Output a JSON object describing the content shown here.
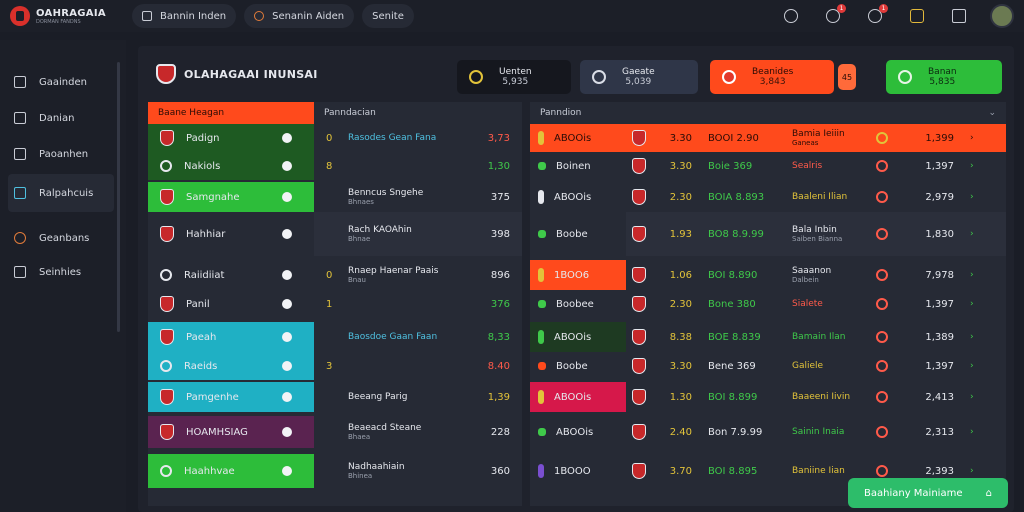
{
  "app": {
    "title": "OAHRAGAIA",
    "subtitle": "DORMAN FANDNS"
  },
  "tabs": [
    {
      "label": "Bannin Inden"
    },
    {
      "label": "Senanin Aiden"
    },
    {
      "label": "Senite"
    }
  ],
  "top_badges": {
    "b1": "1",
    "b2": "1"
  },
  "sidebar": {
    "items": [
      {
        "label": "Gaainden"
      },
      {
        "label": "Danian"
      },
      {
        "label": "Paoanhen"
      },
      {
        "label": "Ralpahcuis"
      },
      {
        "label": "Geanbans"
      },
      {
        "label": "Seinhies"
      }
    ]
  },
  "header": {
    "title": "OLAHAGAAI INUNSAI"
  },
  "stats": [
    {
      "label": "Uenten",
      "value": "5,935"
    },
    {
      "label": "Gaeate",
      "value": "5,039"
    },
    {
      "label": "Beanides",
      "value": "3,843"
    },
    {
      "label": "Banan",
      "value": "5,835"
    }
  ],
  "stat_chip": "45",
  "left_panel": {
    "head_a": "Baane Heagan",
    "head_b": "Panndacian",
    "rows": [
      {
        "team": "Padign",
        "num": "0",
        "name": "Rasodes Gean Fana",
        "score": "3,73"
      },
      {
        "team": "Nakiols",
        "num": "8",
        "name": "",
        "score": "1,30"
      },
      {
        "team": "Samgnahe",
        "num": "",
        "name": "Benncus Sngehe",
        "sub": "Bhnaes",
        "score": "375"
      },
      {
        "team": "Hahhiar",
        "num": "",
        "name": "Rach KAOAhin",
        "sub": "Bhnae",
        "score": "398"
      },
      {
        "team": "Raiidiiat",
        "sub": "Bnau",
        "num": "0",
        "name": "Rnaep Haenar Paais",
        "score": "896"
      },
      {
        "team": "Panil",
        "num": "1",
        "name": "",
        "score": "376"
      },
      {
        "team": "Paeah",
        "num": "",
        "name": "Baosdoe Gaan Faan",
        "score": "8,33"
      },
      {
        "team": "Raeids",
        "num": "3",
        "name": "",
        "score": "8.40"
      },
      {
        "team": "Pamgenhe",
        "num": "",
        "name": "Beeang Parig",
        "score": "1,39"
      },
      {
        "team": "HOAMHSIAG",
        "num": "",
        "name": "Beaeacd Steane",
        "sub": "Bhaea",
        "score": "228"
      },
      {
        "team": "Haahhvae",
        "num": "",
        "name": "Nadhaahiain",
        "sub": "Bhinea",
        "score": "360"
      }
    ]
  },
  "right_panel": {
    "head": "Panndion",
    "rows": [
      {
        "name": "ABOOis",
        "v1": "3.30",
        "v2": "BOOI 2.90",
        "team": "Bamia Ieiiin",
        "sub": "Ganeas",
        "score": "1,399"
      },
      {
        "name": "Boinen",
        "v1": "3.30",
        "v2": "Boie 369",
        "team": "Sealris",
        "score": "1,397"
      },
      {
        "name": "ABOOis",
        "v1": "2.30",
        "v2": "BOIA 8.893",
        "team": "Baaleni Ilian",
        "score": "2,979"
      },
      {
        "name": "Boobe",
        "v1": "1.93",
        "v2": "BO8 8.9.99",
        "team": "Bala Inbin",
        "sub": "Saiben Bianna",
        "score": "1,830"
      },
      {
        "name": "1BOO6",
        "v1": "1.06",
        "v2": "BOI 8.890",
        "team": "Saaanon",
        "sub": "Dalbein",
        "score": "7,978"
      },
      {
        "name": "Boobee",
        "v1": "2.30",
        "v2": "Bone 380",
        "team": "Sialete",
        "score": "1,397"
      },
      {
        "name": "ABOOis",
        "v1": "8.38",
        "v2": "BOE 8.839",
        "team": "Bamain Ilan",
        "score": "1,389"
      },
      {
        "name": "Boobe",
        "v1": "3.30",
        "v2": "Bene 369",
        "team": "Galiele",
        "score": "1,397"
      },
      {
        "name": "ABOOis",
        "v1": "1.30",
        "v2": "BOI 8.899",
        "team": "Baaeeni Iivin",
        "score": "2,413"
      },
      {
        "name": "ABOOis",
        "v1": "2.40",
        "v2": "Bon 7.9.99",
        "team": "Sainin Inaia",
        "score": "2,313"
      },
      {
        "name": "1BOOO",
        "v1": "3.70",
        "v2": "BOI 8.895",
        "team": "Baniine Iian",
        "score": "2,393"
      }
    ]
  },
  "toast": {
    "label": "Baahiany Mainiame"
  },
  "colors": {
    "red": "#ff4a1c",
    "green": "#2dbd3a",
    "teal": "#1fb0c4",
    "purple": "#5a2350",
    "darkgreen": "#1e5a22",
    "crimson": "#d6184a"
  }
}
